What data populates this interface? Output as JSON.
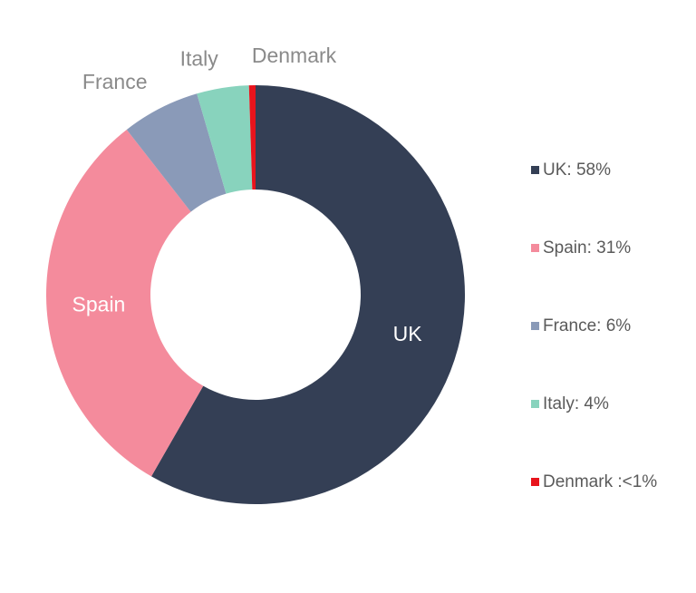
{
  "chart_data": {
    "type": "donut",
    "categories": [
      "UK",
      "Spain",
      "France",
      "Italy",
      "Denmark"
    ],
    "values": [
      58,
      31,
      6,
      4,
      0.5
    ],
    "legend_labels": [
      "UK: 58%",
      "Spain: 31%",
      "France: 6%",
      "Italy: 4%",
      "Denmark :<1%"
    ],
    "colors": [
      "#343f55",
      "#f48b9c",
      "#8a9ab8",
      "#88d3bd",
      "#e8141c"
    ],
    "legend": "right"
  }
}
